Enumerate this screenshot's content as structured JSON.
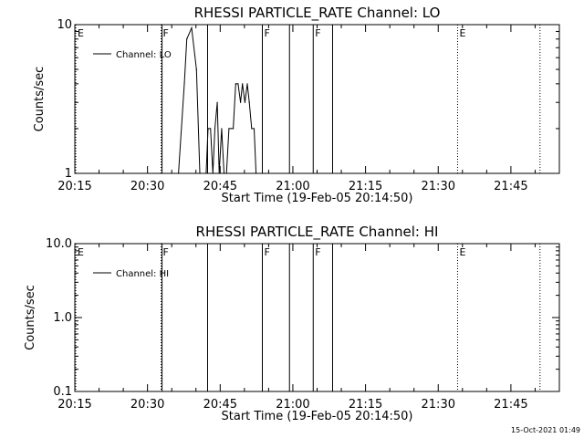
{
  "chart_data": [
    {
      "type": "line",
      "title": "RHESSI PARTICLE_RATE Channel: LO",
      "xlabel": "Start Time (19-Feb-05 20:14:50)",
      "ylabel": "Counts/sec",
      "yscale": "log",
      "ylim": [
        1,
        10
      ],
      "xlim": [
        "20:15",
        "21:55"
      ],
      "xticks": [
        "20:15",
        "20:30",
        "20:45",
        "21:00",
        "21:15",
        "21:30",
        "21:45"
      ],
      "yticks": [
        "1",
        "10"
      ],
      "legend": "top-left",
      "series": [
        {
          "name": "Channel: LO",
          "x": [
            "20:36:24",
            "20:37:36",
            "20:38:06",
            "20:39:06",
            "20:40:06",
            "20:40:48",
            "20:42:06",
            "20:42:30",
            "20:43:00",
            "20:43:30",
            "20:43:54",
            "20:44:24",
            "20:44:48",
            "20:45:18",
            "20:45:48",
            "20:46:18",
            "20:46:48",
            "20:47:18",
            "20:47:42",
            "20:48:12",
            "20:48:42",
            "20:49:12",
            "20:49:36",
            "20:50:06",
            "20:50:36",
            "20:51:00",
            "20:51:30",
            "20:52:00",
            "20:52:24",
            "20:54:00"
          ],
          "y": [
            1,
            4,
            8,
            9.5,
            5,
            1,
            1,
            2,
            2,
            1,
            2,
            3,
            1,
            2,
            1,
            1,
            2,
            2,
            2,
            4,
            4,
            3,
            4,
            3,
            4,
            3,
            2,
            2,
            1,
            1
          ]
        }
      ],
      "markers": [
        {
          "time": "20:14:50",
          "label": "E",
          "style": "dotted"
        },
        {
          "time": "20:32:48",
          "label": "F",
          "style": "dotted"
        },
        {
          "time": "20:33:00",
          "label": "",
          "style": "solid"
        },
        {
          "time": "20:42:24",
          "label": "",
          "style": "solid"
        },
        {
          "time": "20:53:42",
          "label": "F",
          "style": "solid"
        },
        {
          "time": "20:59:18",
          "label": "",
          "style": "solid"
        },
        {
          "time": "21:04:12",
          "label": "F",
          "style": "solid"
        },
        {
          "time": "21:08:12",
          "label": "",
          "style": "solid"
        },
        {
          "time": "21:34:00",
          "label": "E",
          "style": "dotted"
        },
        {
          "time": "21:51:00",
          "label": "",
          "style": "dotted"
        }
      ]
    },
    {
      "type": "line",
      "title": "RHESSI PARTICLE_RATE Channel: HI",
      "xlabel": "Start Time (19-Feb-05 20:14:50)",
      "ylabel": "Counts/sec",
      "yscale": "log",
      "ylim": [
        0.1,
        10
      ],
      "xlim": [
        "20:15",
        "21:55"
      ],
      "xticks": [
        "20:15",
        "20:30",
        "20:45",
        "21:00",
        "21:15",
        "21:30",
        "21:45"
      ],
      "yticks": [
        "0.1",
        "1.0",
        "10.0"
      ],
      "legend": "top-left",
      "series": [
        {
          "name": "Channel: HI",
          "x": [],
          "y": []
        }
      ],
      "markers": [
        {
          "time": "20:14:50",
          "label": "E",
          "style": "dotted"
        },
        {
          "time": "20:32:48",
          "label": "F",
          "style": "dotted"
        },
        {
          "time": "20:33:00",
          "label": "",
          "style": "solid"
        },
        {
          "time": "20:42:24",
          "label": "",
          "style": "solid"
        },
        {
          "time": "20:53:42",
          "label": "F",
          "style": "solid"
        },
        {
          "time": "20:59:18",
          "label": "",
          "style": "solid"
        },
        {
          "time": "21:04:12",
          "label": "F",
          "style": "solid"
        },
        {
          "time": "21:08:12",
          "label": "",
          "style": "solid"
        },
        {
          "time": "21:34:00",
          "label": "E",
          "style": "dotted"
        },
        {
          "time": "21:51:00",
          "label": "",
          "style": "dotted"
        }
      ]
    }
  ],
  "footer": {
    "timestamp": "15-Oct-2021 01:49"
  }
}
